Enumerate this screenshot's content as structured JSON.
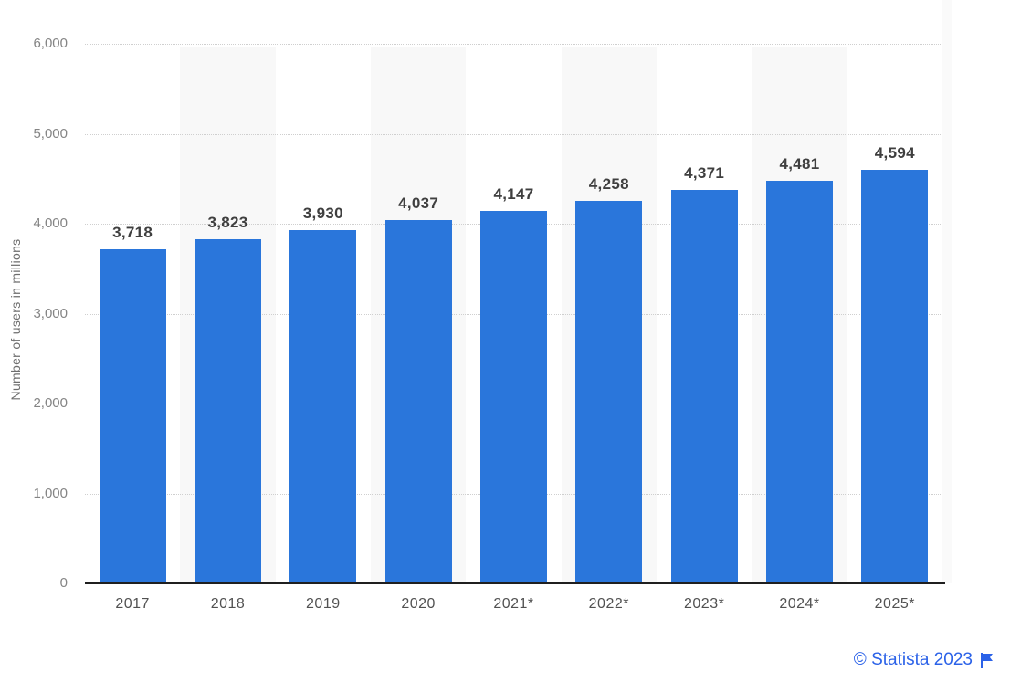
{
  "chart_data": {
    "type": "bar",
    "title": "",
    "xlabel": "",
    "ylabel": "Number of users in millions",
    "categories": [
      "2017",
      "2018",
      "2019",
      "2020",
      "2021*",
      "2022*",
      "2023*",
      "2024*",
      "2025*"
    ],
    "values": [
      3718,
      3823,
      3930,
      4037,
      4147,
      4258,
      4371,
      4481,
      4594
    ],
    "value_labels": [
      "3,718",
      "3,823",
      "3,930",
      "4,037",
      "4,147",
      "4,258",
      "4,371",
      "4,481",
      "4,594"
    ],
    "ylim": [
      0,
      6000
    ],
    "ytick_interval": 1000,
    "yticks": [
      "0",
      "1,000",
      "2,000",
      "3,000",
      "4,000",
      "5,000",
      "6,000"
    ],
    "grid": "horizontal-dotted",
    "legend": "none",
    "colors": {
      "bar": "#2a76db",
      "column_stripe": "#f8f8f8",
      "gridline": "#cfcfcf",
      "axis_line": "#1f1f1f",
      "ytick_text": "#848484",
      "xtick_text": "#515151",
      "value_text": "#3f3f3f"
    },
    "striped_column_indexes": [
      1,
      3,
      5,
      7
    ]
  },
  "footer": {
    "credit": "© Statista 2023",
    "credit_color": "#2b62e8",
    "flag_icon": "flag-icon"
  }
}
